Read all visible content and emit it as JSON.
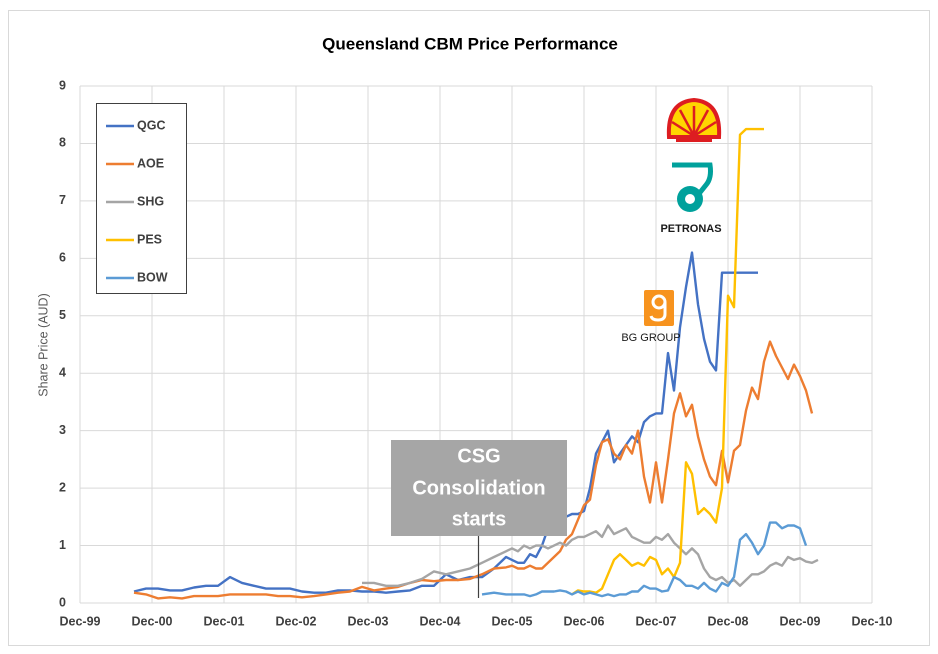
{
  "chart_data": {
    "type": "line",
    "title": "Queensland CBM Price Performance",
    "y_label": "Share Price (AUD)",
    "x": [
      "Sep-00",
      "Nov-00",
      "Jan-01",
      "Mar-01",
      "May-01",
      "Jul-01",
      "Sep-01",
      "Nov-01",
      "Jan-02",
      "Mar-02",
      "May-02",
      "Jul-02",
      "Sep-02",
      "Nov-02",
      "Jan-03",
      "Mar-03",
      "May-03",
      "Jul-03",
      "Sep-03",
      "Nov-03",
      "Jan-04",
      "Mar-04",
      "May-04",
      "Jul-04",
      "Sep-04",
      "Nov-04",
      "Jan-05",
      "Mar-05",
      "May-05",
      "Jul-05",
      "Sep-05",
      "Nov-05",
      "Dec-05",
      "Jan-06",
      "Feb-06",
      "Mar-06",
      "Apr-06",
      "May-06",
      "Jun-06",
      "Jul-06",
      "Aug-06",
      "Sep-06",
      "Oct-06",
      "Nov-06",
      "Dec-06",
      "Jan-07",
      "Feb-07",
      "Mar-07",
      "Apr-07",
      "May-07",
      "Jun-07",
      "Jul-07",
      "Aug-07",
      "Sep-07",
      "Oct-07",
      "Nov-07",
      "Dec-07",
      "Jan-08",
      "Feb-08",
      "Mar-08",
      "Apr-08",
      "May-08",
      "Jun-08",
      "Jul-08",
      "Aug-08",
      "Sep-08",
      "Oct-08",
      "Nov-08",
      "Dec-08",
      "Jan-09",
      "Feb-09",
      "Mar-09",
      "Apr-09",
      "May-09",
      "Jun-09",
      "Jul-09",
      "Aug-09",
      "Sep-09",
      "Oct-09",
      "Nov-09",
      "Dec-09",
      "Jan-10",
      "Feb-10",
      "Mar-10"
    ],
    "series": [
      {
        "name": "QGC",
        "color": "#4472c4",
        "values": [
          0.2,
          0.25,
          0.25,
          0.22,
          0.22,
          0.27,
          0.3,
          0.3,
          0.45,
          0.35,
          0.3,
          0.25,
          0.25,
          0.25,
          0.2,
          0.18,
          0.18,
          0.22,
          0.22,
          0.2,
          0.2,
          0.18,
          0.2,
          0.22,
          0.3,
          0.3,
          0.5,
          0.4,
          0.45,
          0.45,
          0.6,
          0.8,
          0.75,
          0.7,
          0.7,
          0.85,
          0.8,
          1.0,
          1.3,
          1.35,
          1.3,
          1.5,
          1.55,
          1.55,
          1.6,
          2.0,
          2.6,
          2.8,
          3.0,
          2.45,
          2.6,
          2.75,
          2.9,
          2.8,
          3.15,
          3.25,
          3.3,
          3.3,
          4.35,
          3.7,
          4.8,
          5.5,
          6.1,
          5.2,
          4.6,
          4.2,
          4.05,
          5.75,
          5.75,
          5.75,
          5.75,
          5.75,
          5.75,
          5.75,
          null,
          null,
          null,
          null,
          null,
          null,
          null,
          null,
          null,
          null
        ]
      },
      {
        "name": "AOE",
        "color": "#ed7d31",
        "values": [
          0.18,
          0.15,
          0.08,
          0.1,
          0.08,
          0.12,
          0.12,
          0.12,
          0.15,
          0.15,
          0.15,
          0.15,
          0.12,
          0.12,
          0.1,
          0.12,
          0.15,
          0.18,
          0.2,
          0.28,
          0.22,
          0.25,
          0.28,
          0.35,
          0.4,
          0.38,
          0.4,
          0.4,
          0.42,
          0.5,
          0.6,
          0.62,
          0.65,
          0.6,
          0.6,
          0.65,
          0.6,
          0.6,
          0.7,
          0.8,
          0.9,
          1.1,
          1.2,
          1.45,
          1.7,
          1.8,
          2.4,
          2.8,
          2.85,
          2.6,
          2.5,
          2.75,
          2.6,
          3.0,
          2.2,
          1.75,
          2.45,
          1.75,
          2.5,
          3.3,
          3.65,
          3.25,
          3.45,
          2.9,
          2.5,
          2.2,
          2.05,
          2.65,
          2.1,
          2.65,
          2.75,
          3.35,
          3.75,
          3.55,
          4.2,
          4.55,
          4.3,
          4.1,
          3.9,
          4.15,
          3.95,
          3.7,
          3.3,
          null
        ]
      },
      {
        "name": "SHG",
        "color": "#a5a5a5",
        "values": [
          null,
          null,
          null,
          null,
          null,
          null,
          null,
          null,
          null,
          null,
          null,
          null,
          null,
          null,
          null,
          null,
          null,
          null,
          null,
          0.35,
          0.35,
          0.3,
          0.3,
          0.35,
          0.42,
          0.55,
          0.5,
          0.55,
          0.6,
          0.7,
          0.8,
          0.9,
          0.95,
          0.9,
          1.0,
          0.95,
          1.0,
          1.0,
          0.95,
          1.0,
          1.05,
          1.0,
          1.1,
          1.15,
          1.15,
          1.2,
          1.25,
          1.15,
          1.35,
          1.2,
          1.25,
          1.3,
          1.15,
          1.1,
          1.05,
          1.05,
          1.15,
          1.1,
          1.2,
          1.05,
          0.95,
          0.85,
          0.95,
          0.85,
          0.6,
          0.45,
          0.4,
          0.45,
          0.35,
          0.4,
          0.3,
          0.4,
          0.5,
          0.5,
          0.55,
          0.65,
          0.7,
          0.65,
          0.8,
          0.75,
          0.78,
          0.72,
          0.7,
          0.75
        ]
      },
      {
        "name": "PES",
        "color": "#ffc000",
        "values": [
          null,
          null,
          null,
          null,
          null,
          null,
          null,
          null,
          null,
          null,
          null,
          null,
          null,
          null,
          null,
          null,
          null,
          null,
          null,
          null,
          null,
          null,
          null,
          null,
          null,
          null,
          null,
          null,
          null,
          null,
          null,
          null,
          null,
          null,
          null,
          null,
          null,
          null,
          null,
          null,
          null,
          null,
          0.15,
          0.22,
          0.2,
          0.2,
          0.18,
          0.25,
          0.5,
          0.75,
          0.85,
          0.75,
          0.65,
          0.7,
          0.65,
          0.8,
          0.75,
          0.5,
          0.6,
          0.45,
          0.7,
          2.45,
          2.25,
          1.55,
          1.65,
          1.55,
          1.4,
          2.0,
          5.35,
          5.15,
          8.15,
          8.25,
          8.25,
          8.25,
          8.25,
          null,
          null,
          null,
          null,
          null,
          null,
          null,
          null,
          null
        ]
      },
      {
        "name": "BOW",
        "color": "#5b9bd5",
        "values": [
          null,
          null,
          null,
          null,
          null,
          null,
          null,
          null,
          null,
          null,
          null,
          null,
          null,
          null,
          null,
          null,
          null,
          null,
          null,
          null,
          null,
          null,
          null,
          null,
          null,
          null,
          null,
          null,
          null,
          0.15,
          0.18,
          0.15,
          0.15,
          0.15,
          0.15,
          0.12,
          0.15,
          0.2,
          0.2,
          0.2,
          0.22,
          0.2,
          0.15,
          0.2,
          0.15,
          0.18,
          0.15,
          0.12,
          0.15,
          0.12,
          0.15,
          0.15,
          0.2,
          0.2,
          0.3,
          0.25,
          0.25,
          0.2,
          0.22,
          0.45,
          0.4,
          0.3,
          0.3,
          0.25,
          0.35,
          0.25,
          0.2,
          0.35,
          0.3,
          0.45,
          1.1,
          1.2,
          1.05,
          0.85,
          1.0,
          1.4,
          1.4,
          1.3,
          1.35,
          1.35,
          1.3,
          1.0,
          null,
          null
        ]
      }
    ],
    "xlim": [
      "Dec-99",
      "Dec-10"
    ],
    "xticks": [
      "Dec-99",
      "Dec-00",
      "Dec-01",
      "Dec-02",
      "Dec-03",
      "Dec-04",
      "Dec-05",
      "Dec-06",
      "Dec-07",
      "Dec-08",
      "Dec-09",
      "Dec-10"
    ],
    "ylim": [
      0,
      9
    ],
    "yticks": [
      0,
      1,
      2,
      3,
      4,
      5,
      6,
      7,
      8,
      9
    ],
    "grid": true,
    "legend": "upper left",
    "annotation": [
      "CSG",
      "Consolidation",
      "starts"
    ],
    "logo_labels": [
      "PETRONAS",
      "BG GROUP"
    ]
  }
}
